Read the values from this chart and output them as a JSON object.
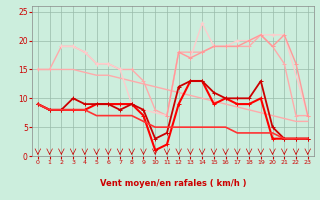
{
  "background_color": "#cceedd",
  "grid_color": "#99bbaa",
  "xlabel": "Vent moyen/en rafales ( km/h )",
  "xlim": [
    -0.5,
    23.5
  ],
  "ylim": [
    0,
    26
  ],
  "xticks": [
    0,
    1,
    2,
    3,
    4,
    5,
    6,
    7,
    8,
    9,
    10,
    11,
    12,
    13,
    14,
    15,
    16,
    17,
    18,
    19,
    20,
    21,
    22,
    23
  ],
  "yticks": [
    0,
    5,
    10,
    15,
    20,
    25
  ],
  "series": [
    {
      "x": [
        0,
        1,
        2,
        3,
        4,
        5,
        6,
        7,
        8,
        9,
        10,
        11,
        12,
        13,
        14,
        15,
        16,
        17,
        18,
        19,
        20,
        21,
        22,
        23
      ],
      "y": [
        15,
        15,
        15,
        15,
        14.5,
        14,
        14,
        13.5,
        13,
        12.5,
        12,
        11.5,
        11,
        10.5,
        10,
        9.5,
        9,
        8.5,
        8,
        7.5,
        7,
        6.5,
        6,
        6
      ],
      "color": "#ffaaaa",
      "lw": 1.0,
      "marker": null
    },
    {
      "x": [
        0,
        1,
        2,
        3,
        4,
        5,
        6,
        7,
        8,
        9,
        10,
        11,
        12,
        13,
        14,
        15,
        16,
        17,
        18,
        19,
        20,
        21,
        22,
        23
      ],
      "y": [
        15,
        15,
        19,
        19,
        18,
        16,
        16,
        15,
        15,
        13,
        8,
        7,
        18,
        18,
        18,
        19,
        19,
        19,
        19,
        21,
        19,
        16,
        7,
        7
      ],
      "color": "#ffaaaa",
      "lw": 1.0,
      "marker": "+"
    },
    {
      "x": [
        2,
        3,
        4,
        5,
        6,
        7,
        8,
        9,
        11,
        12,
        13,
        14,
        15,
        16,
        17,
        18,
        19,
        20,
        21,
        23
      ],
      "y": [
        19,
        19,
        18,
        16,
        16,
        15,
        9,
        8,
        7,
        18,
        17,
        23,
        19,
        19,
        20,
        20,
        21,
        21,
        21,
        7
      ],
      "color": "#ffcccc",
      "lw": 1.0,
      "marker": "+"
    },
    {
      "x": [
        11,
        12,
        13,
        14,
        15,
        16,
        17,
        18,
        19,
        20,
        21,
        22,
        23
      ],
      "y": [
        7,
        18,
        17,
        18,
        19,
        19,
        19,
        20,
        21,
        19,
        21,
        16,
        7
      ],
      "color": "#ff9999",
      "lw": 1.0,
      "marker": "+"
    },
    {
      "x": [
        0,
        1,
        2,
        3,
        4,
        5,
        6,
        7,
        8,
        9,
        10,
        11,
        12,
        13,
        14,
        15,
        16,
        17,
        18,
        19,
        20,
        21,
        22,
        23
      ],
      "y": [
        9,
        8,
        8,
        8,
        8,
        9,
        9,
        9,
        9,
        7,
        1,
        2,
        9,
        13,
        13,
        9,
        10,
        9,
        9,
        10,
        3,
        3,
        3,
        3
      ],
      "color": "#ff0000",
      "lw": 1.5,
      "marker": "+"
    },
    {
      "x": [
        0,
        1,
        2,
        3,
        4,
        5,
        6,
        7,
        8,
        9,
        10,
        11,
        12,
        13,
        14,
        15,
        16,
        17,
        18,
        19,
        20,
        21,
        22,
        23
      ],
      "y": [
        9,
        8,
        8,
        10,
        9,
        9,
        9,
        8,
        9,
        8,
        3,
        4,
        12,
        13,
        13,
        11,
        10,
        10,
        10,
        13,
        5,
        3,
        3,
        3
      ],
      "color": "#cc0000",
      "lw": 1.3,
      "marker": "+"
    },
    {
      "x": [
        0,
        1,
        2,
        3,
        4,
        5,
        6,
        7,
        8,
        9,
        10,
        11,
        12,
        13,
        14,
        15,
        16,
        17,
        18,
        19,
        20,
        21,
        22,
        23
      ],
      "y": [
        9,
        8,
        8,
        8,
        8,
        7,
        7,
        7,
        7,
        6,
        5,
        5,
        5,
        5,
        5,
        5,
        5,
        4,
        4,
        4,
        4,
        3,
        3,
        3
      ],
      "color": "#ff3333",
      "lw": 1.2,
      "marker": null
    }
  ],
  "wind_symbols": {
    "x": [
      0,
      1,
      2,
      3,
      4,
      5,
      6,
      7,
      8,
      9,
      10,
      11,
      12,
      13,
      14,
      15,
      16,
      17,
      18,
      19,
      20,
      21,
      22,
      23
    ],
    "color": "#cc0000"
  }
}
